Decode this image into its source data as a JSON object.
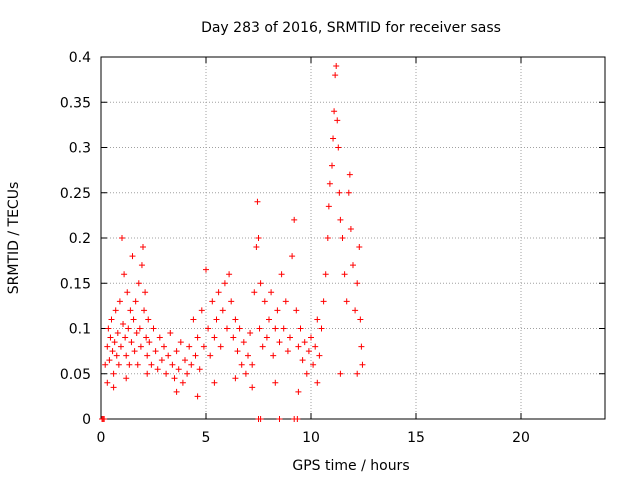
{
  "chart_data": {
    "type": "scatter",
    "title": "Day 283 of 2016, SRMTID for receiver sass",
    "xlabel": "GPS time / hours",
    "ylabel": "SRMTID / TECUs",
    "xlim": [
      0,
      24
    ],
    "ylim": [
      0,
      0.4
    ],
    "xticks": [
      0,
      5,
      10,
      15,
      20
    ],
    "yticks": [
      0,
      0.05,
      0.1,
      0.15,
      0.2,
      0.25,
      0.3,
      0.35,
      0.4
    ],
    "xtick_labels": [
      "0",
      "5",
      "10",
      "15",
      "20"
    ],
    "ytick_labels": [
      "0",
      "0.05",
      "0.1",
      "0.15",
      "0.2",
      "0.25",
      "0.3",
      "0.35",
      "0.4"
    ],
    "grid": true,
    "marker": "+",
    "color": "#ff0000",
    "series": [
      {
        "points": [
          [
            0.05,
            0
          ],
          [
            0.1,
            0
          ],
          [
            0.15,
            0
          ],
          [
            0.2,
            0.06
          ],
          [
            0.3,
            0.08
          ],
          [
            0.35,
            0.1
          ],
          [
            0.4,
            0.065
          ],
          [
            0.45,
            0.09
          ],
          [
            0.5,
            0.11
          ],
          [
            0.55,
            0.075
          ],
          [
            0.6,
            0.05
          ],
          [
            0.65,
            0.085
          ],
          [
            0.7,
            0.12
          ],
          [
            0.75,
            0.07
          ],
          [
            0.8,
            0.095
          ],
          [
            0.85,
            0.06
          ],
          [
            0.9,
            0.13
          ],
          [
            0.95,
            0.08
          ],
          [
            1.0,
            0.2
          ],
          [
            1.05,
            0.105
          ],
          [
            1.1,
            0.16
          ],
          [
            1.15,
            0.09
          ],
          [
            1.2,
            0.07
          ],
          [
            1.25,
            0.14
          ],
          [
            1.3,
            0.1
          ],
          [
            1.35,
            0.06
          ],
          [
            1.4,
            0.12
          ],
          [
            1.45,
            0.085
          ],
          [
            1.5,
            0.18
          ],
          [
            1.55,
            0.11
          ],
          [
            1.6,
            0.075
          ],
          [
            1.65,
            0.13
          ],
          [
            1.7,
            0.095
          ],
          [
            1.75,
            0.06
          ],
          [
            1.8,
            0.15
          ],
          [
            1.85,
            0.1
          ],
          [
            1.9,
            0.08
          ],
          [
            1.95,
            0.17
          ],
          [
            2.0,
            0.19
          ],
          [
            2.05,
            0.12
          ],
          [
            2.1,
            0.14
          ],
          [
            2.15,
            0.09
          ],
          [
            2.2,
            0.07
          ],
          [
            2.25,
            0.11
          ],
          [
            2.3,
            0.085
          ],
          [
            2.4,
            0.06
          ],
          [
            2.5,
            0.1
          ],
          [
            2.6,
            0.075
          ],
          [
            2.7,
            0.055
          ],
          [
            2.8,
            0.09
          ],
          [
            2.9,
            0.065
          ],
          [
            3.0,
            0.08
          ],
          [
            3.1,
            0.05
          ],
          [
            3.2,
            0.07
          ],
          [
            3.3,
            0.095
          ],
          [
            3.4,
            0.06
          ],
          [
            3.5,
            0.045
          ],
          [
            3.6,
            0.075
          ],
          [
            3.7,
            0.055
          ],
          [
            3.8,
            0.085
          ],
          [
            3.9,
            0.04
          ],
          [
            4.0,
            0.065
          ],
          [
            4.1,
            0.05
          ],
          [
            4.2,
            0.08
          ],
          [
            4.3,
            0.06
          ],
          [
            4.4,
            0.11
          ],
          [
            4.5,
            0.07
          ],
          [
            4.6,
            0.09
          ],
          [
            4.7,
            0.055
          ],
          [
            4.8,
            0.12
          ],
          [
            4.9,
            0.08
          ],
          [
            5.0,
            0.165
          ],
          [
            5.1,
            0.1
          ],
          [
            5.2,
            0.07
          ],
          [
            5.3,
            0.13
          ],
          [
            5.4,
            0.09
          ],
          [
            5.5,
            0.11
          ],
          [
            5.6,
            0.14
          ],
          [
            5.7,
            0.08
          ],
          [
            5.8,
            0.12
          ],
          [
            5.9,
            0.15
          ],
          [
            6.0,
            0.1
          ],
          [
            6.1,
            0.16
          ],
          [
            6.2,
            0.13
          ],
          [
            6.3,
            0.09
          ],
          [
            6.4,
            0.11
          ],
          [
            6.5,
            0.075
          ],
          [
            6.6,
            0.1
          ],
          [
            6.7,
            0.06
          ],
          [
            6.8,
            0.085
          ],
          [
            6.9,
            0.05
          ],
          [
            7.0,
            0.07
          ],
          [
            7.1,
            0.095
          ],
          [
            7.2,
            0.06
          ],
          [
            7.3,
            0.14
          ],
          [
            7.4,
            0.19
          ],
          [
            7.45,
            0.24
          ],
          [
            7.5,
            0.2
          ],
          [
            7.55,
            0.1
          ],
          [
            7.6,
            0.15
          ],
          [
            7.7,
            0.08
          ],
          [
            7.8,
            0.13
          ],
          [
            7.9,
            0.09
          ],
          [
            8.0,
            0.11
          ],
          [
            8.1,
            0.14
          ],
          [
            8.2,
            0.07
          ],
          [
            8.3,
            0.1
          ],
          [
            8.4,
            0.12
          ],
          [
            8.5,
            0.085
          ],
          [
            8.6,
            0.16
          ],
          [
            8.7,
            0.1
          ],
          [
            8.8,
            0.13
          ],
          [
            8.9,
            0.075
          ],
          [
            9.0,
            0.09
          ],
          [
            9.1,
            0.18
          ],
          [
            9.2,
            0.22
          ],
          [
            9.3,
            0.12
          ],
          [
            9.4,
            0.08
          ],
          [
            9.5,
            0.1
          ],
          [
            9.6,
            0.065
          ],
          [
            9.7,
            0.085
          ],
          [
            9.8,
            0.05
          ],
          [
            9.9,
            0.075
          ],
          [
            10.0,
            0.09
          ],
          [
            10.1,
            0.06
          ],
          [
            10.2,
            0.08
          ],
          [
            10.3,
            0.11
          ],
          [
            10.4,
            0.07
          ],
          [
            10.5,
            0.1
          ],
          [
            10.6,
            0.13
          ],
          [
            10.7,
            0.16
          ],
          [
            10.8,
            0.2
          ],
          [
            10.85,
            0.235
          ],
          [
            10.9,
            0.26
          ],
          [
            11.0,
            0.28
          ],
          [
            11.05,
            0.31
          ],
          [
            11.1,
            0.34
          ],
          [
            11.15,
            0.38
          ],
          [
            11.2,
            0.39
          ],
          [
            11.25,
            0.33
          ],
          [
            11.3,
            0.3
          ],
          [
            11.35,
            0.25
          ],
          [
            11.4,
            0.22
          ],
          [
            11.5,
            0.2
          ],
          [
            11.6,
            0.16
          ],
          [
            11.7,
            0.13
          ],
          [
            11.8,
            0.25
          ],
          [
            11.85,
            0.27
          ],
          [
            11.9,
            0.21
          ],
          [
            12.0,
            0.17
          ],
          [
            12.1,
            0.12
          ],
          [
            12.2,
            0.15
          ],
          [
            12.3,
            0.19
          ],
          [
            12.35,
            0.11
          ],
          [
            12.4,
            0.08
          ],
          [
            12.45,
            0.06
          ],
          [
            0.3,
            0.04
          ],
          [
            0.6,
            0.035
          ],
          [
            1.2,
            0.045
          ],
          [
            2.2,
            0.05
          ],
          [
            3.6,
            0.03
          ],
          [
            4.6,
            0.025
          ],
          [
            5.4,
            0.04
          ],
          [
            6.4,
            0.045
          ],
          [
            7.2,
            0.035
          ],
          [
            8.3,
            0.04
          ],
          [
            9.4,
            0.03
          ],
          [
            10.3,
            0.04
          ],
          [
            11.4,
            0.05
          ],
          [
            12.2,
            0.05
          ],
          [
            7.5,
            0
          ],
          [
            7.6,
            0
          ],
          [
            8.5,
            0
          ],
          [
            9.2,
            0
          ],
          [
            9.35,
            0
          ]
        ]
      }
    ]
  }
}
